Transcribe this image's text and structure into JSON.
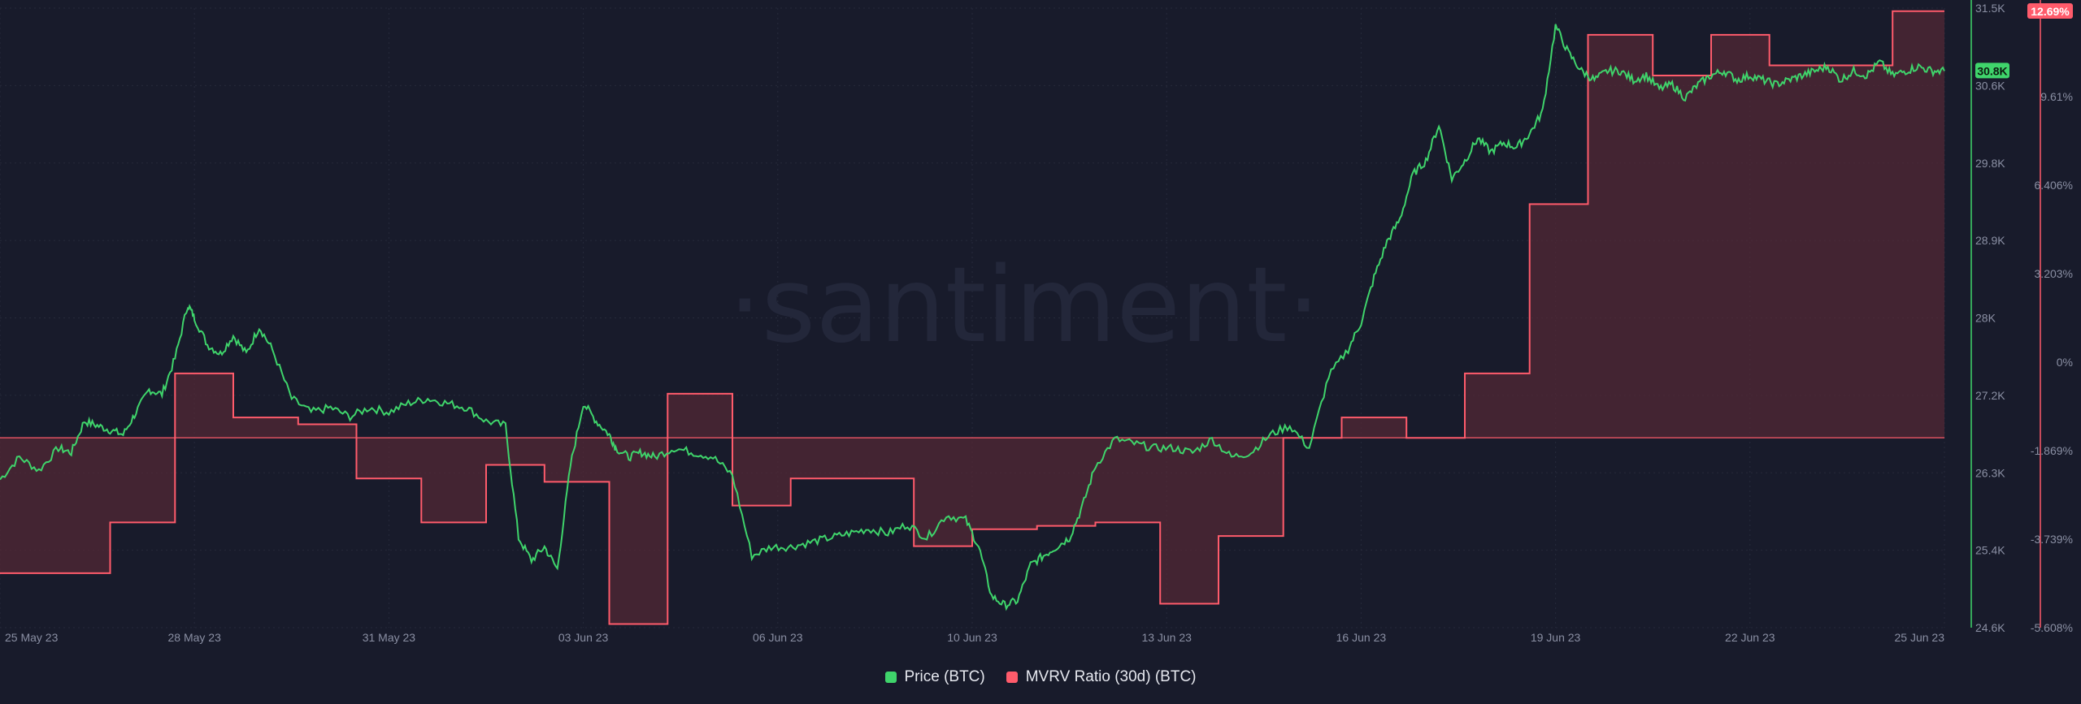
{
  "colors": {
    "background": "#181b2b",
    "price": "#3fd46b",
    "mvrv": "#ff5b6b",
    "mvrv_fill": "#5a2a35",
    "grid": "#262a3b",
    "axis_text": "#8a8fa3",
    "watermark": "#23273a"
  },
  "watermark": "·santiment·",
  "legend": [
    {
      "label": "Price (BTC)",
      "color": "#3fd46b"
    },
    {
      "label": "MVRV Ratio (30d) (BTC)",
      "color": "#ff5b6b"
    }
  ],
  "chart_data": {
    "type": "line",
    "x_ticks": [
      "25 May 23",
      "28 May 23",
      "31 May 23",
      "03 Jun 23",
      "06 Jun 23",
      "10 Jun 23",
      "13 Jun 23",
      "16 Jun 23",
      "19 Jun 23",
      "22 Jun 23",
      "25 Jun 23"
    ],
    "y_left_ticks": [
      "31.5K",
      "30.6K",
      "29.8K",
      "28.9K",
      "28K",
      "27.2K",
      "26.3K",
      "25.4K",
      "24.6K"
    ],
    "y_right_ticks": [
      "12.69%",
      "9.61%",
      "6.406%",
      "3.203%",
      "0%",
      "-1.869%",
      "-3.739%",
      "-5.608%"
    ],
    "price_axis_range": [
      24600,
      31500
    ],
    "mvrv_axis_range": [
      -5.608,
      12.69
    ],
    "grid": true,
    "legend_position": "bottom-center",
    "current_price_label": "30.8K",
    "current_mvrv_label": "12.69%",
    "series": [
      {
        "name": "Price (BTC)",
        "axis": "left",
        "x": [
          0,
          0.3,
          0.6,
          0.9,
          1.1,
          1.3,
          1.5,
          1.7,
          1.9,
          2.1,
          2.3,
          2.5,
          2.7,
          2.9,
          3.0,
          3.2,
          3.4,
          3.6,
          3.8,
          4.0,
          4.2,
          4.5,
          4.8,
          5.1,
          5.4,
          5.7,
          6.0,
          6.3,
          6.6,
          6.9,
          7.2,
          7.5,
          7.8,
          8.0,
          8.2,
          8.4,
          8.6,
          8.8,
          9.0,
          9.2,
          9.4,
          9.5,
          9.7,
          9.9,
          10.1,
          10.4,
          10.7,
          11.0,
          11.3,
          11.6,
          11.9,
          12.2,
          12.5,
          12.8,
          13.1,
          13.4,
          13.7,
          14.0,
          14.3,
          14.6,
          14.9,
          15.1,
          15.3,
          15.5,
          15.7,
          15.9,
          16.1,
          16.3,
          16.5,
          16.7,
          16.9,
          17.2,
          17.5,
          17.8,
          18.1,
          18.4,
          18.7,
          19.0,
          19.3,
          19.6,
          19.9,
          20.2,
          20.5,
          20.8,
          21.0,
          21.2,
          21.4,
          21.6,
          21.8,
          22.0,
          22.2,
          22.4,
          22.6,
          22.8,
          23.0,
          23.2,
          23.4,
          23.6,
          23.8,
          24.0,
          24.2,
          24.4,
          24.6,
          24.8,
          25.0,
          25.2,
          25.4,
          25.6,
          25.8,
          26.0,
          26.2,
          26.4,
          26.6,
          26.8,
          27.0,
          27.2,
          27.4,
          27.6,
          27.8,
          28.0,
          28.2,
          28.4,
          28.6,
          28.8,
          29.0,
          29.2,
          29.4,
          29.6,
          29.8,
          30.0
        ],
        "values": [
          26250,
          26500,
          26350,
          26600,
          26550,
          26900,
          26850,
          26800,
          26750,
          27000,
          27250,
          27200,
          27600,
          28200,
          28050,
          27750,
          27650,
          27850,
          27650,
          27950,
          27700,
          27150,
          27000,
          27050,
          26950,
          27050,
          27000,
          27100,
          27150,
          27100,
          27050,
          26900,
          26850,
          25600,
          25350,
          25500,
          25250,
          26400,
          27100,
          26900,
          26750,
          26600,
          26500,
          26550,
          26500,
          26600,
          26550,
          26500,
          26300,
          25400,
          25500,
          25500,
          25550,
          25600,
          25650,
          25700,
          25650,
          25750,
          25600,
          25850,
          25800,
          25500,
          24950,
          24850,
          24900,
          25300,
          25400,
          25500,
          25600,
          25950,
          26400,
          26700,
          26650,
          26600,
          26600,
          26550,
          26700,
          26500,
          26550,
          26750,
          26850,
          26600,
          27400,
          27700,
          28000,
          28500,
          28900,
          29150,
          29650,
          29800,
          30200,
          29600,
          29800,
          30050,
          29900,
          30000,
          29950,
          30100,
          30350,
          31300,
          31000,
          30800,
          30700,
          30800,
          30800,
          30700,
          30750,
          30600,
          30650,
          30500,
          30650,
          30750,
          30800,
          30700,
          30750,
          30700,
          30650,
          30700,
          30750,
          30800,
          30850,
          30700,
          30800,
          30750,
          30900,
          30750,
          30800,
          30850,
          30800,
          30800
        ],
        "color": "#3fd46b"
      },
      {
        "name": "MVRV Ratio (30d) (BTC)",
        "axis": "right",
        "type": "step",
        "x": [
          0,
          1.7,
          2.7,
          3.6,
          4.6,
          5.5,
          6.5,
          7.5,
          8.4,
          9.4,
          10.3,
          11.3,
          12.2,
          13.2,
          14.1,
          15.0,
          16.0,
          16.9,
          17.9,
          18.8,
          19.8,
          20.7,
          21.7,
          22.6,
          23.6,
          24.5,
          25.5,
          26.4,
          27.3,
          28.3,
          29.2,
          29.8
        ],
        "values": [
          -4.0,
          -2.5,
          1.9,
          0.6,
          0.4,
          -1.2,
          -2.5,
          -0.8,
          -1.3,
          -5.5,
          1.3,
          -2.0,
          -1.2,
          -1.2,
          -3.2,
          -2.7,
          -2.6,
          -2.5,
          -4.9,
          -2.9,
          0.0,
          0.6,
          0.0,
          1.9,
          6.9,
          11.9,
          10.7,
          11.9,
          11.0,
          11.0,
          12.6,
          12.6
        ],
        "color": "#ff5b6b"
      }
    ]
  }
}
